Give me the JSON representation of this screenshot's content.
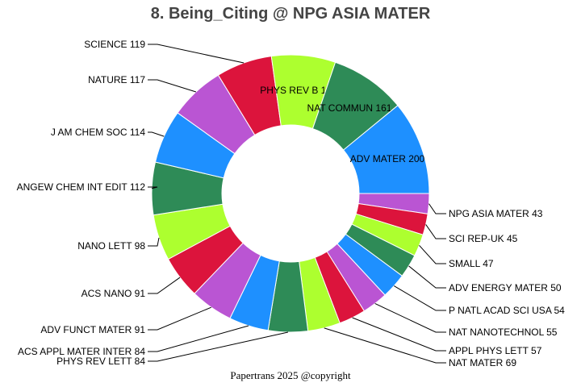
{
  "chart_data": {
    "type": "pie",
    "hole": true,
    "title": "8. Being_Citing @ NPG ASIA MATER",
    "direction": "clockwise",
    "labels": [
      "NPG ASIA MATER",
      "SCI REP-UK",
      "SMALL",
      "ADV ENERGY MATER",
      "P NATL ACAD SCI USA",
      "NAT NANOTECHNOL",
      "APPL PHYS LETT",
      "NAT MATER",
      "PHYS REV LETT",
      "ACS APPL MATER INTER",
      "ADV FUNCT MATER",
      "ACS NANO",
      "NANO LETT",
      "ANGEW CHEM INT EDIT",
      "J AM CHEM SOC",
      "NATURE",
      "SCIENCE",
      "PHYS REV B",
      "NAT COMMUN",
      "ADV MATER"
    ],
    "values": [
      43,
      45,
      47,
      50,
      54,
      55,
      57,
      69,
      84,
      84,
      91,
      91,
      98,
      112,
      114,
      117,
      119,
      136,
      161,
      200
    ],
    "colors": [
      "#BA55D3",
      "#DC143C",
      "#ADFF2F",
      "#2E8B57",
      "#1E90FF"
    ]
  },
  "footer": "Papertrans 2025 @copyright"
}
